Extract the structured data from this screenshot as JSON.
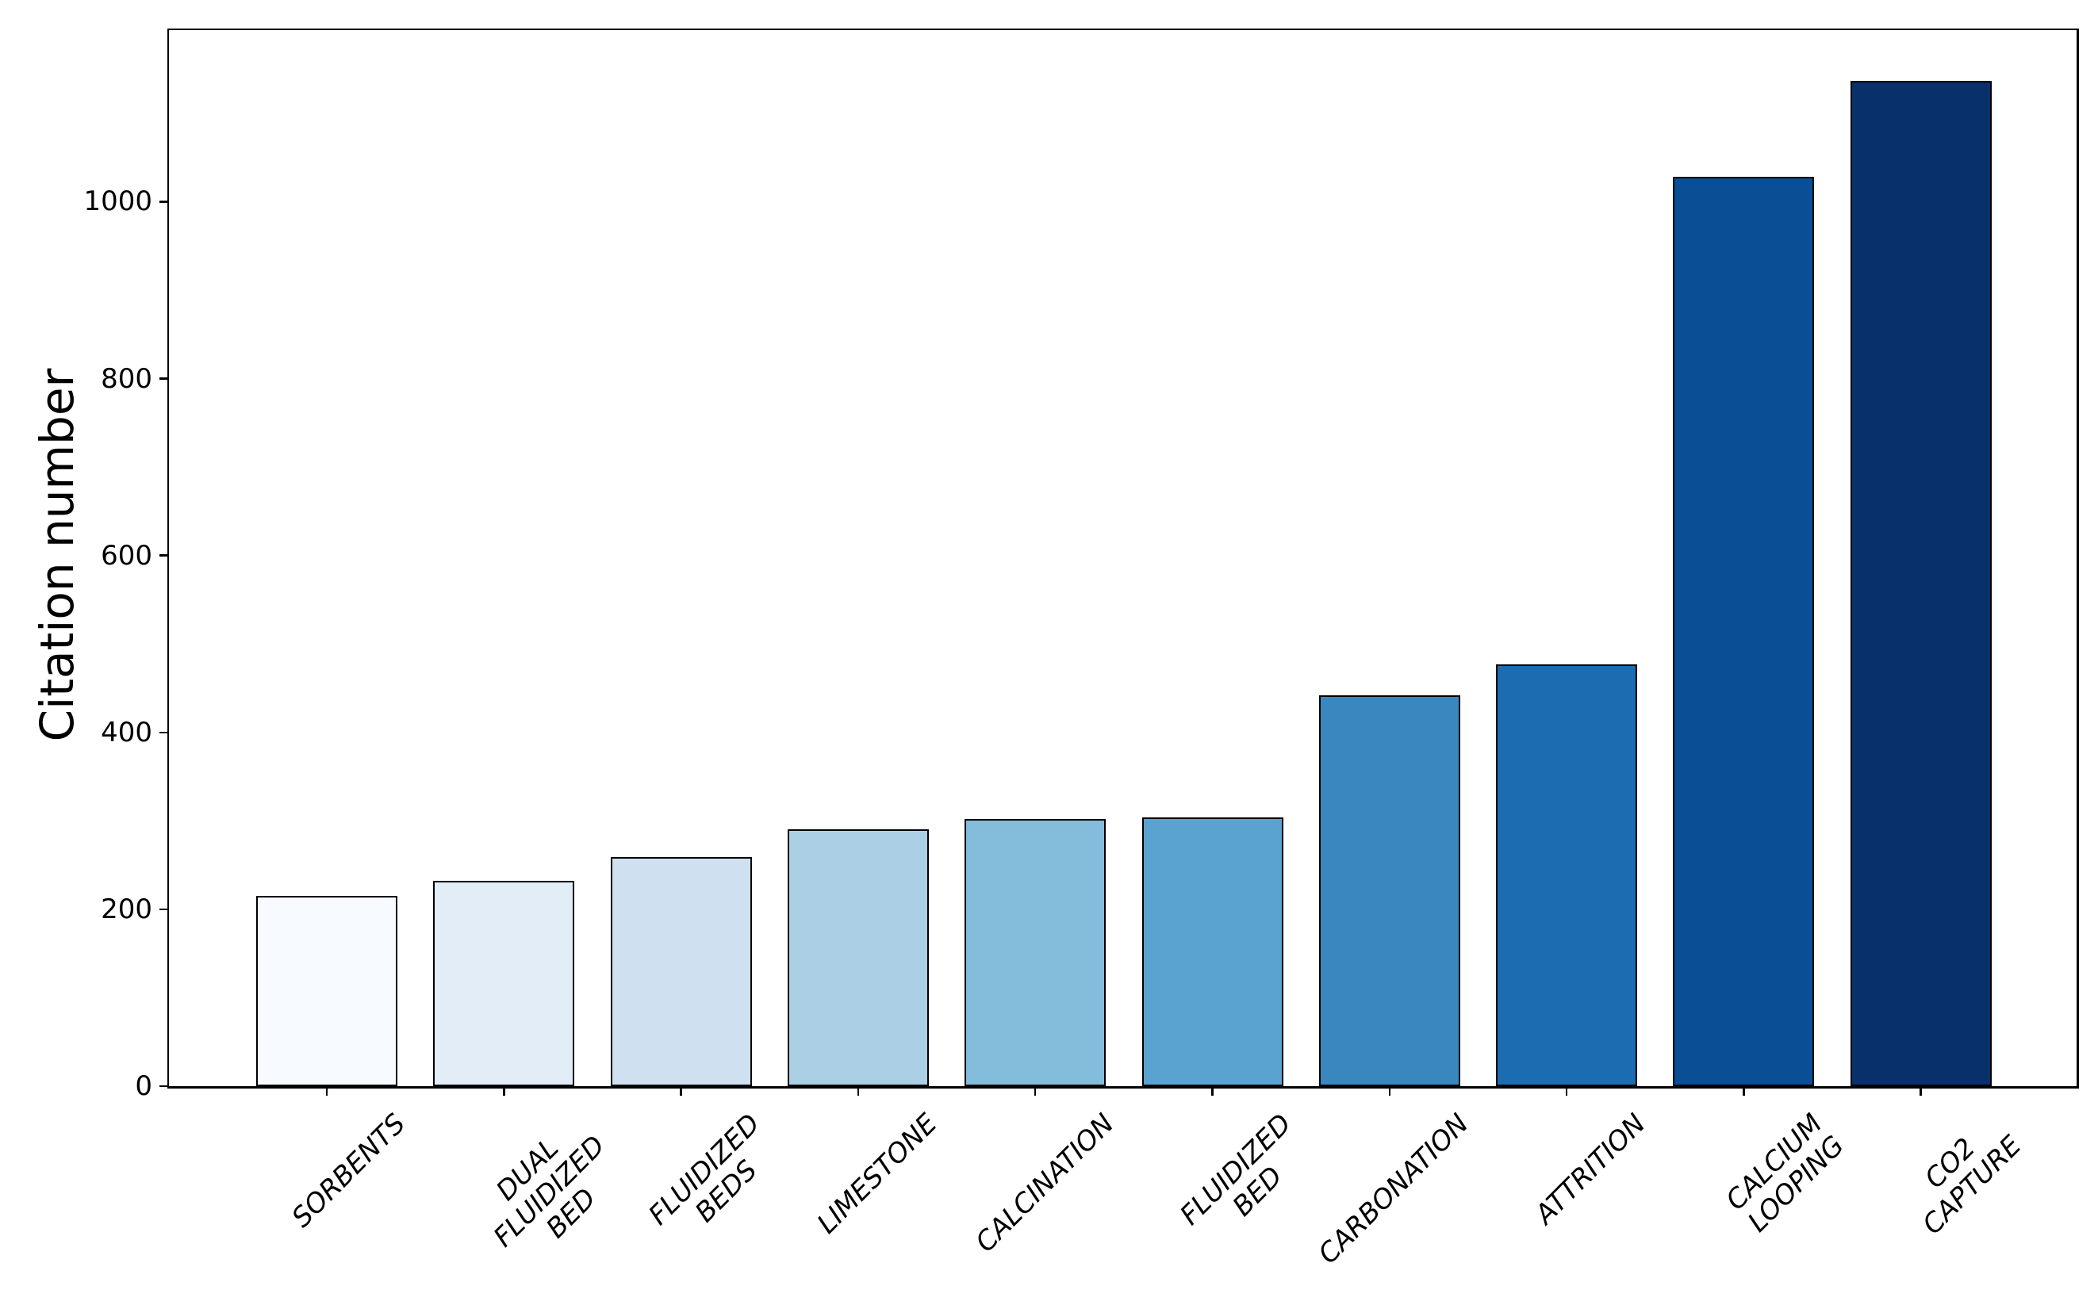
{
  "chart_data": {
    "type": "bar",
    "title": "",
    "xlabel": "",
    "ylabel": "Citation number",
    "categories": [
      "SORBENTS",
      "DUAL\nFLUIDIZED\nBED",
      "FLUIDIZED\nBEDS",
      "LIMESTONE",
      "CALCINATION",
      "FLUIDIZED\nBED",
      "CARBONATION",
      "ATTRITION",
      "CALCIUM\nLOOPING",
      "CO2\nCAPTURE"
    ],
    "values": [
      215,
      232,
      259,
      290,
      302,
      304,
      442,
      477,
      1028,
      1137
    ],
    "bar_colors": [
      "#f7fbff",
      "#e2edf8",
      "#cfe0f1",
      "#abd0e6",
      "#84bcdb",
      "#5aa2d0",
      "#3a87c0",
      "#1c6cb1",
      "#0a4e96",
      "#08306b"
    ],
    "bar_edge_color": "#000000",
    "yticks": [
      0,
      200,
      400,
      600,
      800,
      1000
    ],
    "ylim": [
      0,
      1194
    ],
    "grid": false,
    "legend": "none",
    "axis_color": "#000000",
    "text_color": "#000000",
    "background": "#ffffff"
  }
}
